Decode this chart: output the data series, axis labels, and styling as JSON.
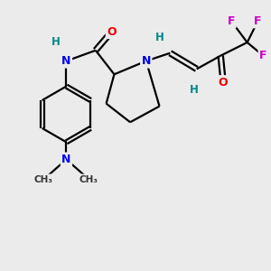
{
  "background_color": "#ebebeb",
  "atom_colors": {
    "C": "#000000",
    "N": "#0000ee",
    "O": "#ee0000",
    "F": "#cc00cc",
    "H": "#008888"
  },
  "bond_color": "#000000"
}
